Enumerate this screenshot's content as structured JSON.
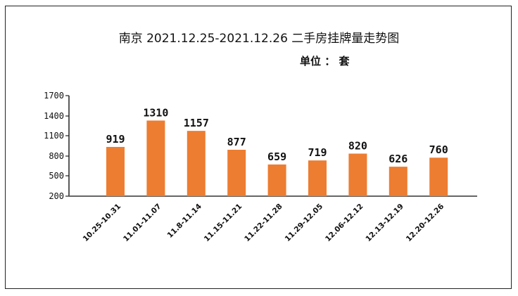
{
  "chart_data": {
    "type": "bar",
    "title": "南京 2021.12.25-2021.12.26 二手房挂牌量走势图",
    "unit_label": "单位 ： 套",
    "categories": [
      "10.25-10.31",
      "11.01-11.07",
      "11.8-11.14",
      "11.15-11.21",
      "11.22-11.28",
      "11.29-12.05",
      "12.06-12.12",
      "12.13-12.19",
      "12.20-12.26"
    ],
    "values": [
      919,
      1310,
      1157,
      877,
      659,
      719,
      820,
      626,
      760
    ],
    "y_ticks": [
      "1700",
      "1400",
      "1100",
      "800",
      "500",
      "200"
    ],
    "ylim": [
      200,
      1700
    ],
    "bar_color": "#ED7D31",
    "grid": false,
    "legend": "none"
  }
}
